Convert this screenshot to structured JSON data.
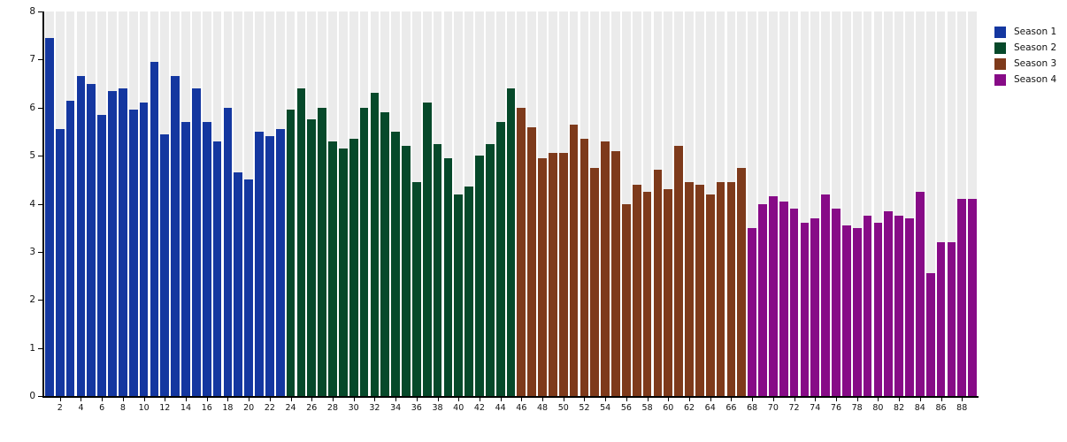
{
  "chart_data": {
    "type": "bar",
    "title": "",
    "xlabel": "",
    "ylabel": "",
    "ylim": [
      0,
      8
    ],
    "ytick_values": [
      0,
      1,
      2,
      3,
      4,
      5,
      6,
      7,
      8
    ],
    "xtick_every": 2,
    "grid": "vertical-stripes",
    "stripe_color": "#ebebeb",
    "axis_color": "#000000",
    "label_color": "#111111",
    "legend_position": "top-right",
    "x_unit": "episode-number",
    "series": [
      {
        "name": "Season 1",
        "color": "#1437a0",
        "episode_start": 1,
        "values": [
          7.45,
          5.55,
          6.15,
          6.65,
          6.5,
          5.85,
          6.35,
          6.4,
          5.95,
          6.1,
          6.95,
          5.45,
          6.65,
          5.7,
          6.4,
          5.7,
          5.3,
          6.0,
          4.65,
          4.5,
          5.5,
          5.4,
          5.55
        ]
      },
      {
        "name": "Season 2",
        "color": "#06492a",
        "episode_start": 24,
        "values": [
          5.95,
          6.4,
          5.75,
          6.0,
          5.3,
          5.15,
          5.35,
          6.0,
          6.3,
          5.9,
          5.5,
          5.2,
          4.45,
          6.1,
          5.25,
          4.95,
          4.2,
          4.35,
          5.0,
          5.25,
          5.7,
          6.4
        ]
      },
      {
        "name": "Season 3",
        "color": "#7e3a1b",
        "episode_start": 46,
        "values": [
          6.0,
          5.6,
          4.95,
          5.05,
          5.05,
          5.65,
          5.35,
          4.75,
          5.3,
          5.1,
          4.0,
          4.4,
          4.25,
          4.7,
          4.3,
          5.2,
          4.45,
          4.4,
          4.2,
          4.45,
          4.45,
          4.75
        ]
      },
      {
        "name": "Season 4",
        "color": "#870b87",
        "episode_start": 68,
        "values": [
          3.5,
          4.0,
          4.15,
          4.05,
          3.9,
          3.6,
          3.7,
          4.2,
          3.9,
          3.55,
          3.5,
          3.75,
          3.6,
          3.85,
          3.75,
          3.7,
          4.25,
          2.55,
          3.2,
          3.2,
          4.1,
          4.1
        ]
      }
    ]
  },
  "legend": {
    "items": [
      {
        "label": "Season 1",
        "color": "#1437a0"
      },
      {
        "label": "Season 2",
        "color": "#06492a"
      },
      {
        "label": "Season 3",
        "color": "#7e3a1b"
      },
      {
        "label": "Season 4",
        "color": "#870b87"
      }
    ]
  }
}
